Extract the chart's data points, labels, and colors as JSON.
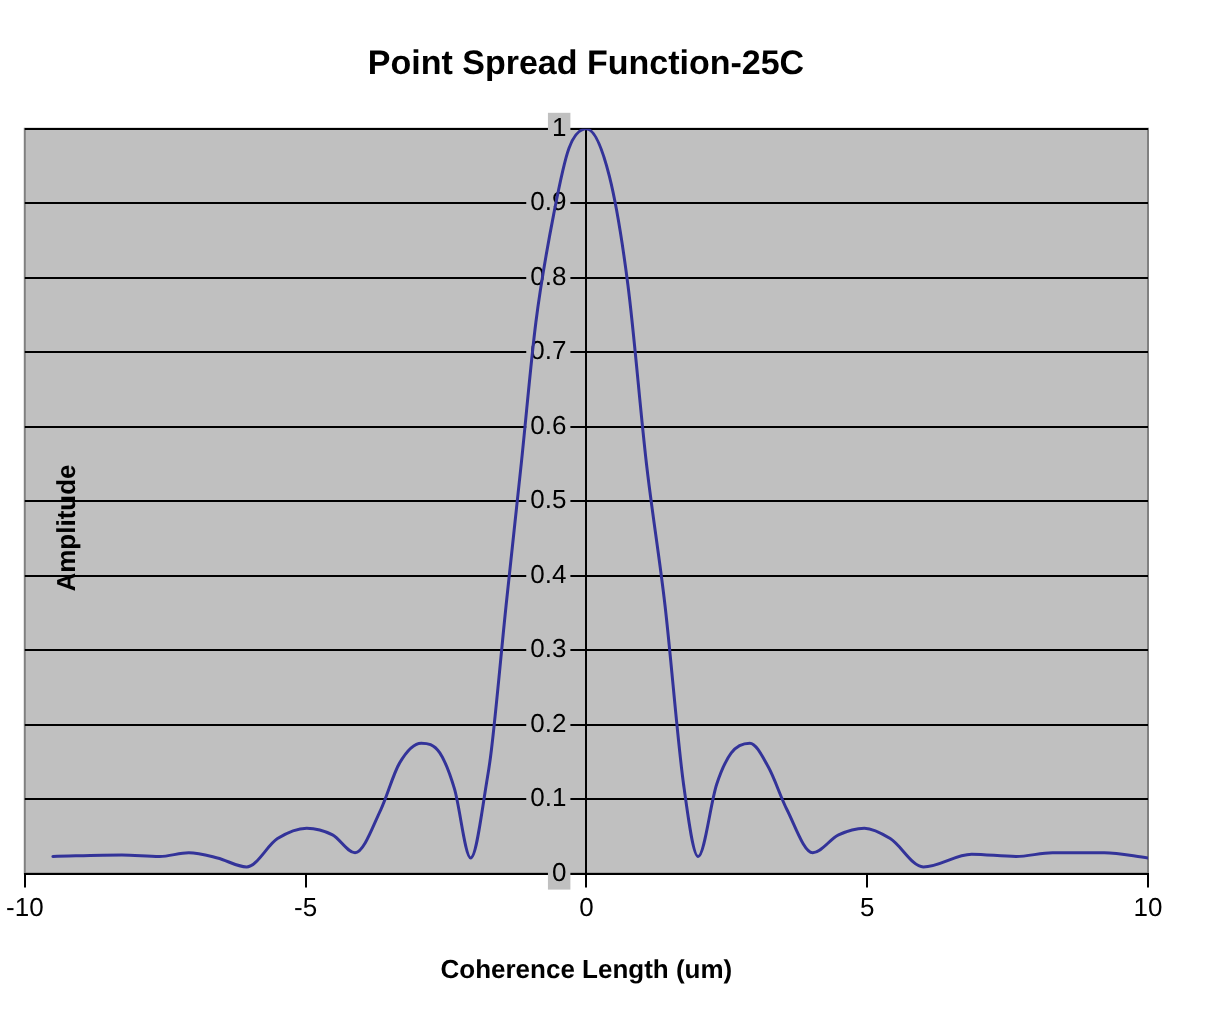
{
  "chart_data": {
    "type": "line",
    "title": "Point Spread Function-25C",
    "xlabel": "Coherence Length (um)",
    "ylabel": "Amplitude",
    "xlim": [
      -10,
      10
    ],
    "xticks": [
      -10,
      -5,
      0,
      5,
      10
    ],
    "ylim": [
      0,
      1
    ],
    "yticks": [
      0,
      0.1,
      0.2,
      0.3,
      0.4,
      0.5,
      0.6,
      0.7,
      0.8,
      0.9,
      1
    ],
    "grid": "y",
    "legend": false,
    "marker": "none",
    "line_style": "solid",
    "series": [
      {
        "color": "#333399",
        "x": [
          -9.5,
          -8.27,
          -7.6,
          -7.08,
          -6.57,
          -6.05,
          -5.5,
          -4.98,
          -4.52,
          -4.12,
          -3.66,
          -3.33,
          -2.94,
          -2.61,
          -2.35,
          -2.06,
          -1.76,
          -1.69,
          -1.43,
          -1.16,
          -0.9,
          -0.57,
          -0.31,
          0,
          0.41,
          0.74,
          1.07,
          1.4,
          1.73,
          1.99,
          2.32,
          2.58,
          2.91,
          3.24,
          3.57,
          4.03,
          4.49,
          4.95,
          5.41,
          6.0,
          6.86,
          7.65,
          8.3,
          9.22,
          10
        ],
        "values": [
          0.023,
          0.025,
          0.023,
          0.028,
          0.021,
          0.009,
          0.047,
          0.061,
          0.052,
          0.028,
          0.086,
          0.148,
          0.175,
          0.162,
          0.114,
          0.021,
          0.13,
          0.167,
          0.36,
          0.55,
          0.74,
          0.89,
          0.974,
          1,
          0.936,
          0.79,
          0.55,
          0.36,
          0.12,
          0.023,
          0.12,
          0.162,
          0.175,
          0.143,
          0.086,
          0.028,
          0.052,
          0.061,
          0.047,
          0.009,
          0.026,
          0.023,
          0.028,
          0.028,
          0.021
        ]
      }
    ]
  }
}
